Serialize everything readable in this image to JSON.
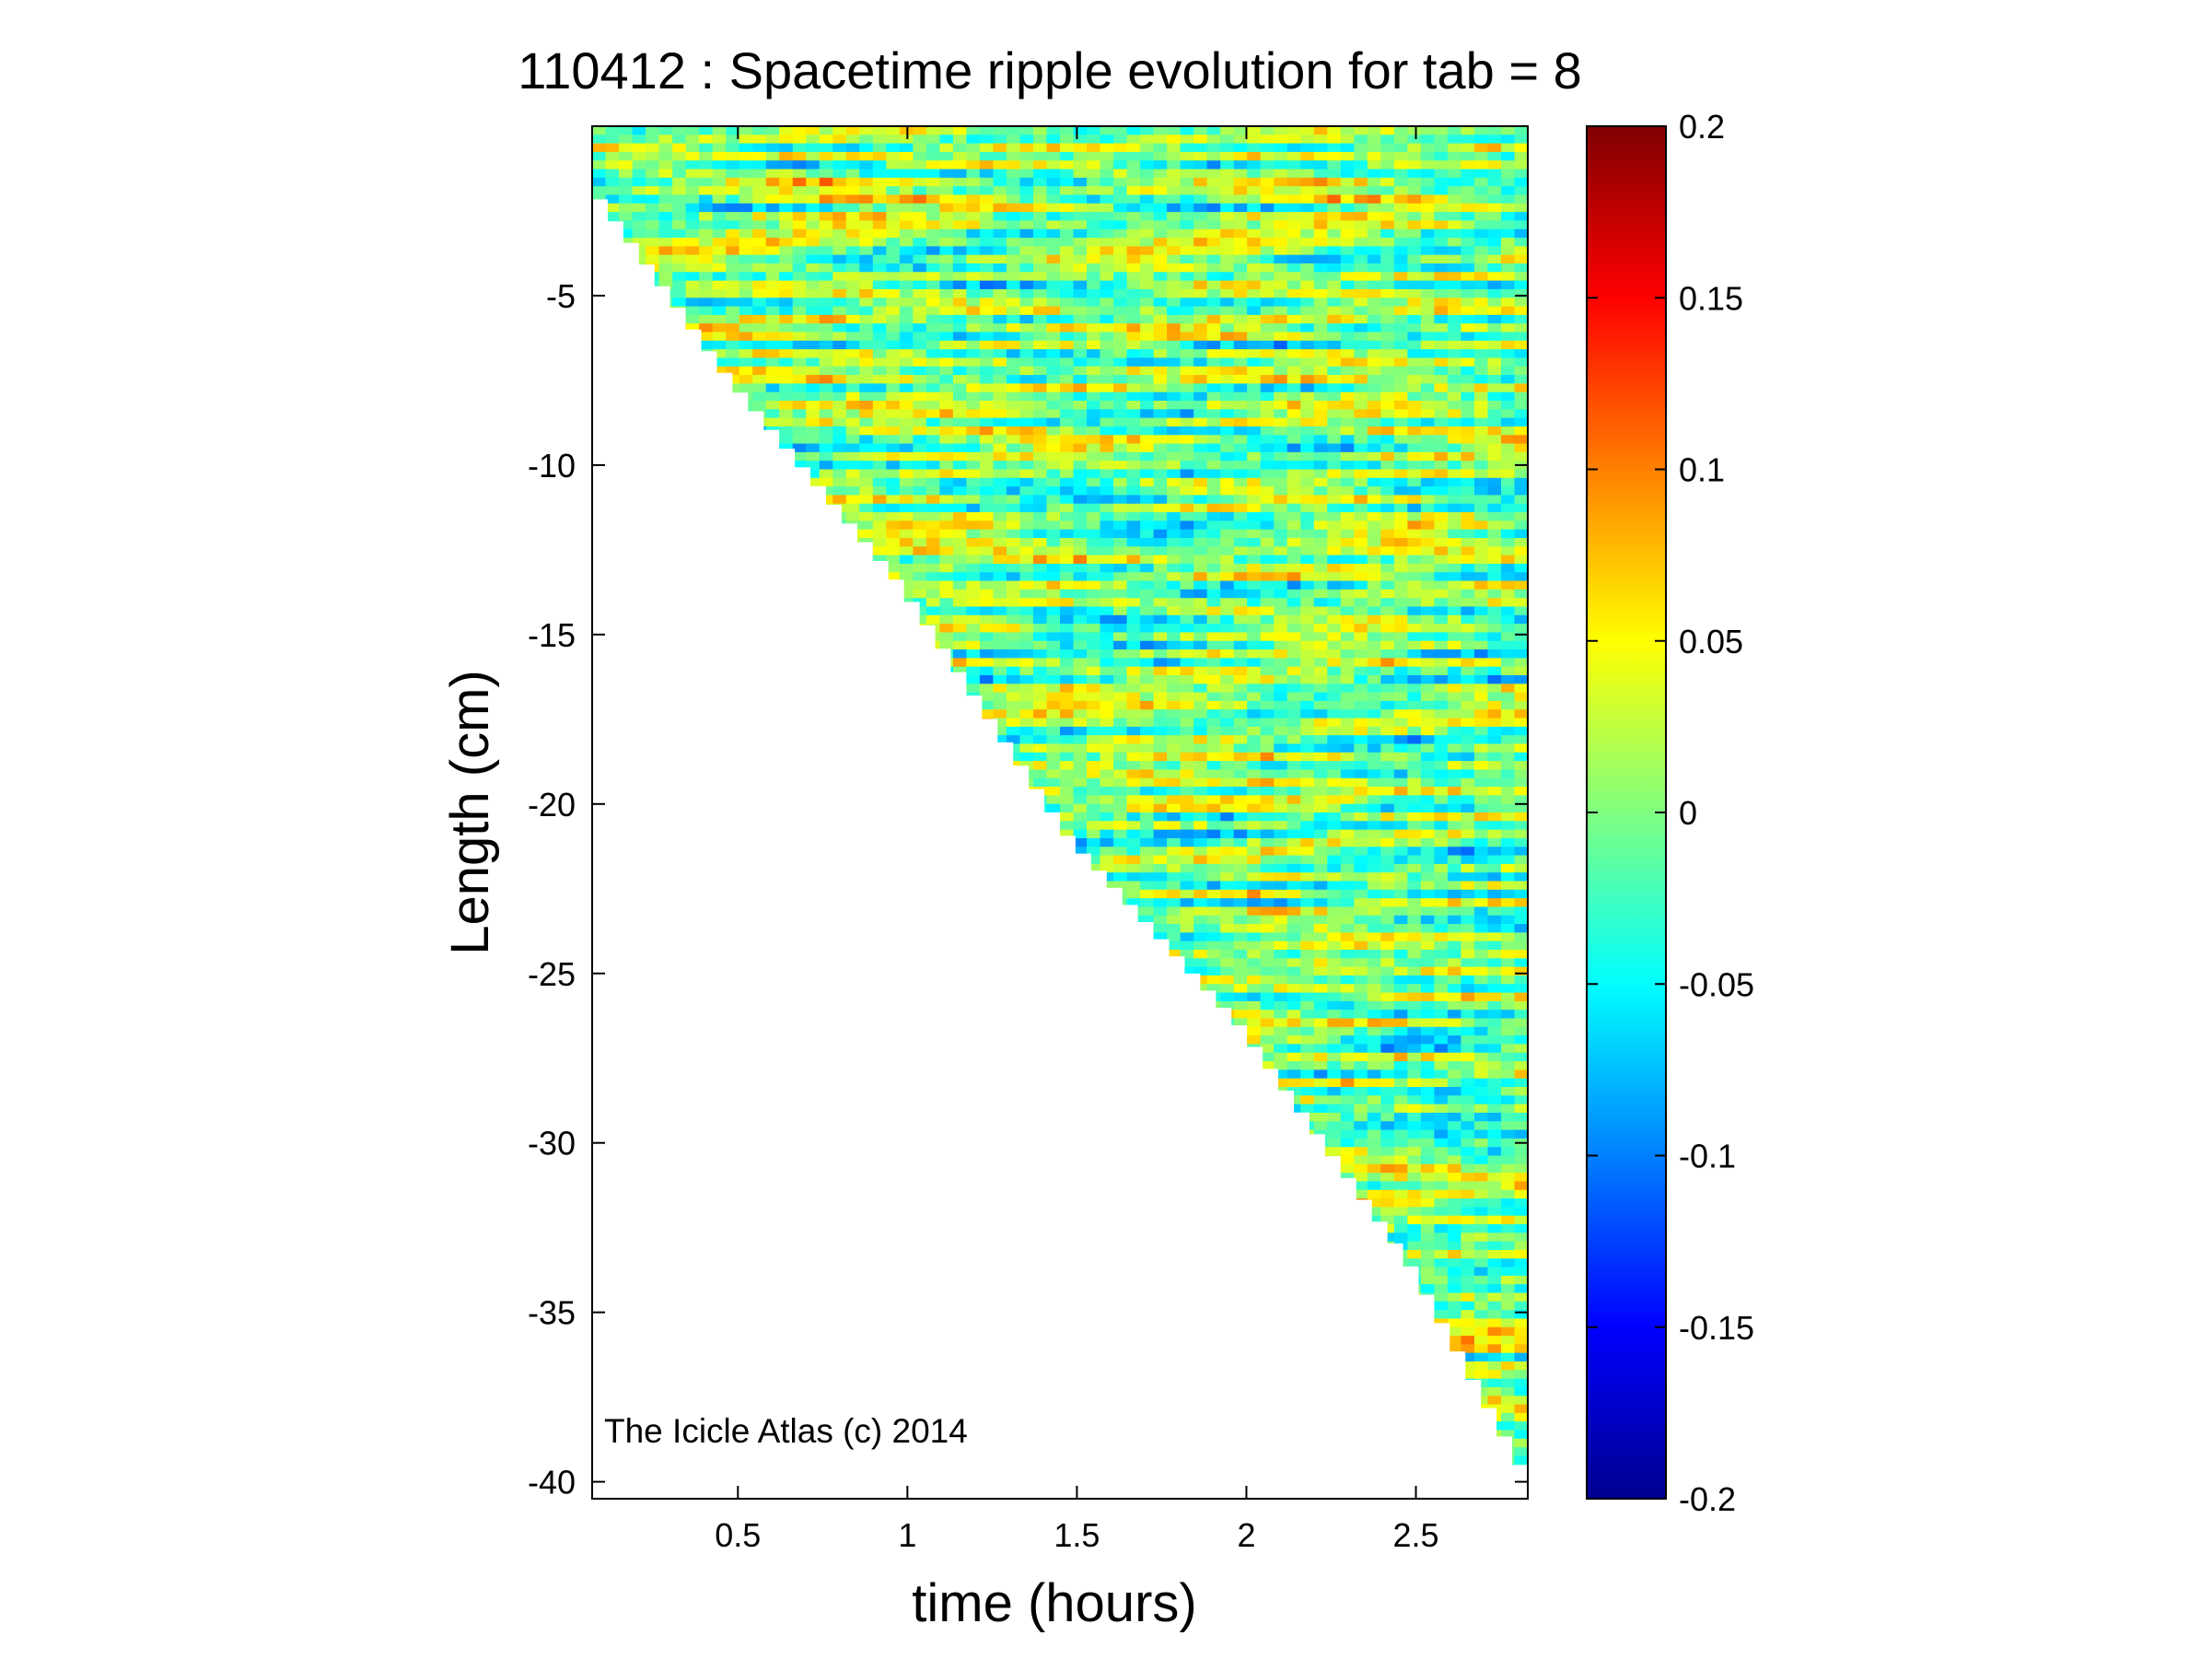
{
  "chart_data": {
    "type": "heatmap",
    "title": "110412 : Spacetime ripple evolution for tab = 8",
    "xlabel": "time (hours)",
    "ylabel": "Length (cm)",
    "xlim": [
      0.07,
      2.83
    ],
    "ylim": [
      -40.5,
      0
    ],
    "x_ticks": [
      0.5,
      1,
      1.5,
      2,
      2.5
    ],
    "x_tick_labels": [
      "0.5",
      "1",
      "1.5",
      "2",
      "2.5"
    ],
    "y_ticks": [
      -5,
      -10,
      -15,
      -20,
      -25,
      -30,
      -35,
      -40
    ],
    "y_tick_labels": [
      "-5",
      "-10",
      "-15",
      "-20",
      "-25",
      "-30",
      "-35",
      "-40"
    ],
    "colormap": "jet",
    "clim": [
      -0.2,
      0.2
    ],
    "colorbar_ticks": [
      0.2,
      0.15,
      0.1,
      0.05,
      0,
      -0.05,
      -0.1,
      -0.15,
      -0.2
    ],
    "colorbar_tick_labels": [
      "0.2",
      "0.15",
      "0.1",
      "0.05",
      "0",
      "-0.05",
      "-0.1",
      "-0.15",
      "-0.2"
    ],
    "icicle_length_boundary": {
      "time": [
        0.07,
        0.14,
        0.5,
        1.0,
        1.5,
        2.0,
        2.5,
        2.83
      ],
      "length": [
        -1.5,
        -2.5,
        -7.5,
        -13.5,
        -21.0,
        -26.5,
        -33.5,
        -39.5
      ]
    },
    "annotation": "The Icicle Atlas (c) 2014",
    "grid": false
  },
  "colors": {
    "background": "#ffffff",
    "axes_line": "#000000"
  }
}
